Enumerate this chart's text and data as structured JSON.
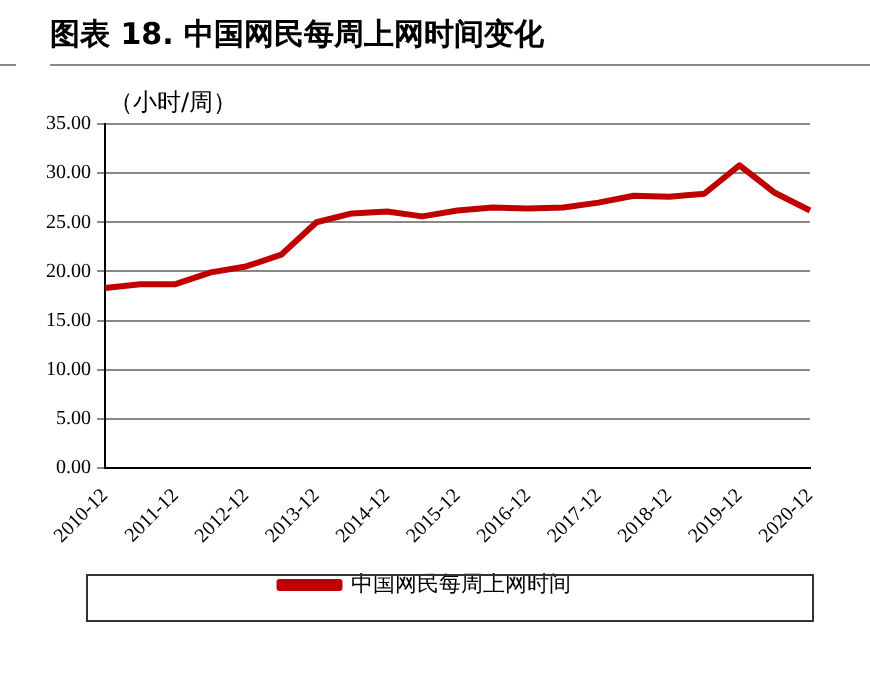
{
  "chart_data": {
    "type": "line",
    "title": "图表 18. 中国网民每周上网时间变化",
    "ylabel": "（小时/周）",
    "categories": [
      "2010-12",
      null,
      "2011-12",
      null,
      "2012-12",
      null,
      "2013-12",
      null,
      "2014-12",
      null,
      "2015-12",
      null,
      "2016-12",
      null,
      "2017-12",
      null,
      "2018-12",
      null,
      "2019-12",
      null,
      "2020-12"
    ],
    "series": [
      {
        "name": "中国网民每周上网时间",
        "color": "#c00000",
        "values": [
          18.3,
          18.7,
          18.7,
          19.9,
          20.5,
          21.7,
          25.0,
          25.9,
          26.1,
          25.6,
          26.2,
          26.5,
          26.4,
          26.5,
          27.0,
          27.7,
          27.6,
          27.9,
          30.8,
          28.0,
          26.2
        ]
      }
    ],
    "ylim": [
      0,
      35
    ],
    "yticks": [
      {
        "value": 0,
        "label": "0.00"
      },
      {
        "value": 5,
        "label": "5.00"
      },
      {
        "value": 10,
        "label": "10.00"
      },
      {
        "value": 15,
        "label": "15.00"
      },
      {
        "value": 20,
        "label": "20.00"
      },
      {
        "value": 25,
        "label": "25.00"
      },
      {
        "value": 30,
        "label": "30.00"
      },
      {
        "value": 35,
        "label": "35.00"
      }
    ],
    "grid": "y",
    "legend": "bottom",
    "marker": "none",
    "line_style": "solid"
  }
}
